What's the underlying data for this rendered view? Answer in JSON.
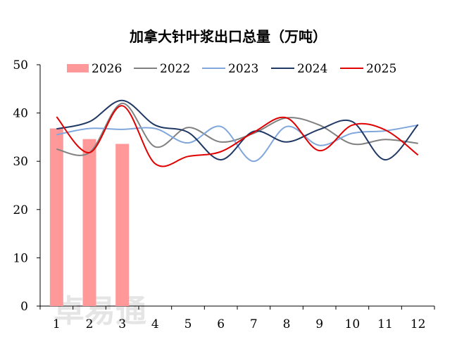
{
  "watermark": "卓易通",
  "chart_data": {
    "type": "bar+line",
    "title": "加拿大针叶浆出口总量（万吨）",
    "categories": [
      "1",
      "2",
      "3",
      "4",
      "5",
      "6",
      "7",
      "8",
      "9",
      "10",
      "11",
      "12"
    ],
    "yticks": [
      "0",
      "10",
      "20",
      "30",
      "40",
      "50"
    ],
    "ylim": [
      0,
      50
    ],
    "legend_position": "top",
    "bar_series": {
      "name": "2026",
      "color": "#ff9999",
      "values": [
        36.8,
        34.6,
        33.6
      ]
    },
    "series": [
      {
        "name": "2022",
        "color": "#808080",
        "values": [
          32.5,
          31.8,
          42.0,
          33.0,
          37.0,
          34.0,
          35.8,
          39.0,
          37.5,
          33.6,
          34.5,
          33.7
        ]
      },
      {
        "name": "2023",
        "color": "#7fa7dc",
        "values": [
          35.5,
          36.8,
          36.6,
          36.8,
          33.8,
          37.2,
          30.0,
          37.2,
          33.3,
          35.8,
          36.3,
          37.5
        ]
      },
      {
        "name": "2024",
        "color": "#1f3864",
        "values": [
          36.7,
          38.2,
          42.6,
          37.5,
          36.0,
          30.3,
          36.2,
          34.0,
          36.6,
          38.2,
          30.3,
          37.6
        ]
      },
      {
        "name": "2025",
        "color": "#e00000",
        "values": [
          39.2,
          31.8,
          41.5,
          29.5,
          31.0,
          32.0,
          36.0,
          39.0,
          32.2,
          37.5,
          36.5,
          31.3
        ]
      }
    ]
  }
}
